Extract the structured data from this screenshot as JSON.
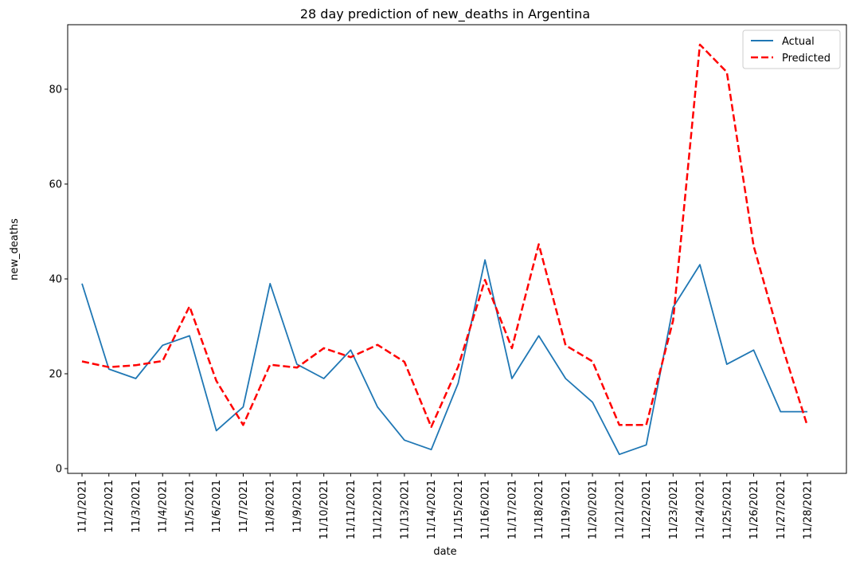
{
  "chart_data": {
    "type": "line",
    "title": "28 day prediction of new_deaths in Argentina",
    "xlabel": "date",
    "ylabel": "new_deaths",
    "x": [
      "11/1/2021",
      "11/2/2021",
      "11/3/2021",
      "11/4/2021",
      "11/5/2021",
      "11/6/2021",
      "11/7/2021",
      "11/8/2021",
      "11/9/2021",
      "11/10/2021",
      "11/11/2021",
      "11/12/2021",
      "11/13/2021",
      "11/14/2021",
      "11/15/2021",
      "11/16/2021",
      "11/17/2021",
      "11/18/2021",
      "11/19/2021",
      "11/20/2021",
      "11/21/2021",
      "11/22/2021",
      "11/23/2021",
      "11/24/2021",
      "11/25/2021",
      "11/26/2021",
      "11/27/2021",
      "11/28/2021"
    ],
    "series": [
      {
        "name": "Actual",
        "color": "#1f77b4",
        "style": "solid",
        "values": [
          39,
          21,
          19,
          26,
          28,
          8,
          13,
          39,
          22,
          19,
          25,
          13,
          6,
          4,
          18,
          44,
          19,
          28,
          19,
          14,
          3,
          5,
          34,
          43,
          22,
          25,
          12,
          12
        ]
      },
      {
        "name": "Predicted",
        "color": "#ff0000",
        "style": "dashed",
        "values": [
          22.6,
          21.4,
          21.8,
          22.7,
          34.2,
          18.5,
          9.2,
          21.9,
          21.3,
          25.4,
          23.5,
          26.1,
          22.5,
          8.8,
          21.5,
          39.8,
          25.4,
          47.3,
          26.0,
          22.6,
          9.2,
          9.2,
          31.2,
          89.4,
          83.6,
          46.9,
          26.9,
          9.0
        ]
      }
    ],
    "yticks": [
      0,
      20,
      40,
      60,
      80
    ],
    "ylim": [
      -1,
      93.6
    ],
    "grid": false,
    "legend_position": "top-right"
  }
}
